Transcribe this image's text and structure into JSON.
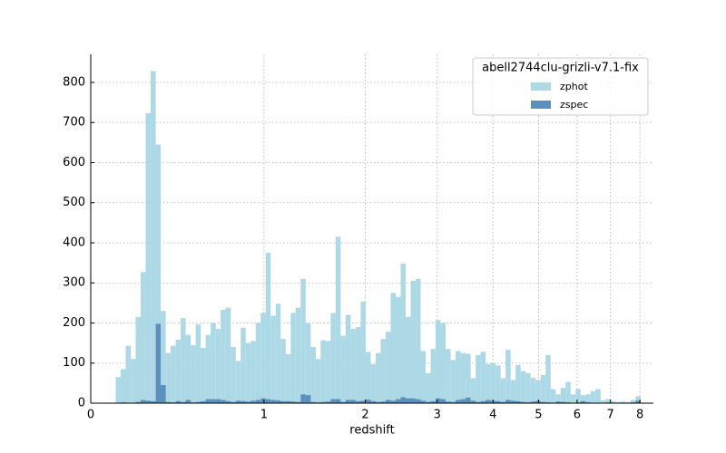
{
  "chart_data": {
    "type": "histogram",
    "xlabel": "redshift",
    "xscale": "log1p",
    "bins": [
      0.105,
      0.127,
      0.15,
      0.174,
      0.197,
      0.221,
      0.246,
      0.271,
      0.297,
      0.323,
      0.35,
      0.377,
      0.405,
      0.433,
      0.462,
      0.492,
      0.522,
      0.553,
      0.584,
      0.616,
      0.649,
      0.682,
      0.716,
      0.751,
      0.786,
      0.822,
      0.859,
      0.896,
      0.935,
      0.974,
      1.014,
      1.054,
      1.096,
      1.138,
      1.181,
      1.226,
      1.27,
      1.316,
      1.363,
      1.411,
      1.46,
      1.509,
      1.56,
      1.612,
      1.664,
      1.718,
      1.773,
      1.829,
      1.886,
      1.945,
      2.004,
      2.065,
      2.127,
      2.19,
      2.254,
      2.32,
      2.387,
      2.456,
      2.525,
      2.597,
      2.669,
      2.743,
      2.819,
      2.896,
      2.975,
      3.055,
      3.137,
      3.221,
      3.306,
      3.393,
      3.482,
      3.572,
      3.665,
      3.759,
      3.855,
      3.953,
      4.053,
      4.155,
      4.259,
      4.366,
      4.474,
      4.585,
      4.697,
      4.812,
      4.93,
      5.05,
      5.172,
      5.297,
      5.424,
      5.554,
      5.686,
      5.821,
      5.959,
      6.099,
      6.243,
      6.389,
      6.538,
      6.691,
      6.846,
      7.004,
      7.166,
      7.331,
      7.499,
      7.671,
      7.846,
      8.025
    ],
    "series": [
      {
        "name": "zphot",
        "color": "#add8e6",
        "values": [
          65,
          85,
          143,
          110,
          215,
          327,
          723,
          828,
          645,
          230,
          125,
          143,
          158,
          212,
          170,
          145,
          196,
          138,
          170,
          200,
          185,
          233,
          238,
          140,
          105,
          188,
          150,
          155,
          200,
          225,
          375,
          218,
          248,
          160,
          122,
          225,
          238,
          310,
          200,
          140,
          110,
          157,
          155,
          225,
          415,
          168,
          220,
          185,
          190,
          253,
          128,
          97,
          125,
          160,
          178,
          275,
          265,
          348,
          215,
          305,
          310,
          130,
          75,
          135,
          207,
          200,
          135,
          108,
          130,
          125,
          123,
          62,
          120,
          128,
          98,
          100,
          94,
          62,
          133,
          58,
          95,
          80,
          75,
          63,
          58,
          70,
          120,
          35,
          22,
          38,
          53,
          22,
          35,
          20,
          22,
          30,
          35,
          7,
          10,
          5,
          3,
          4,
          3,
          8,
          17
        ]
      },
      {
        "name": "zspec",
        "color": "#5b8fbd",
        "values": [
          0,
          2,
          1,
          0,
          3,
          8,
          6,
          5,
          198,
          45,
          3,
          2,
          5,
          3,
          8,
          2,
          3,
          5,
          10,
          10,
          10,
          8,
          5,
          3,
          6,
          5,
          4,
          6,
          8,
          12,
          10,
          8,
          7,
          5,
          5,
          4,
          3,
          22,
          20,
          3,
          2,
          3,
          4,
          10,
          10,
          3,
          8,
          8,
          5,
          6,
          9,
          5,
          3,
          4,
          8,
          6,
          10,
          15,
          12,
          12,
          10,
          6,
          3,
          5,
          12,
          10,
          4,
          3,
          8,
          10,
          14,
          6,
          3,
          5,
          8,
          6,
          5,
          3,
          8,
          6,
          5,
          3,
          2,
          4,
          6,
          3,
          2,
          1,
          4,
          3,
          2,
          1,
          2,
          5,
          2,
          1,
          1,
          1,
          2,
          1,
          0,
          1,
          0,
          2,
          6
        ]
      }
    ],
    "xlim": [
      0,
      8.5
    ],
    "xticks": [
      0,
      1,
      2,
      3,
      4,
      5,
      6,
      7,
      8
    ],
    "ylim": [
      0,
      870
    ],
    "yticks": [
      0,
      100,
      200,
      300,
      400,
      500,
      600,
      700,
      800
    ],
    "grid": true,
    "legend": {
      "title": "abell2744clu-grizli-v7.1-fix",
      "loc": "upper right"
    }
  }
}
